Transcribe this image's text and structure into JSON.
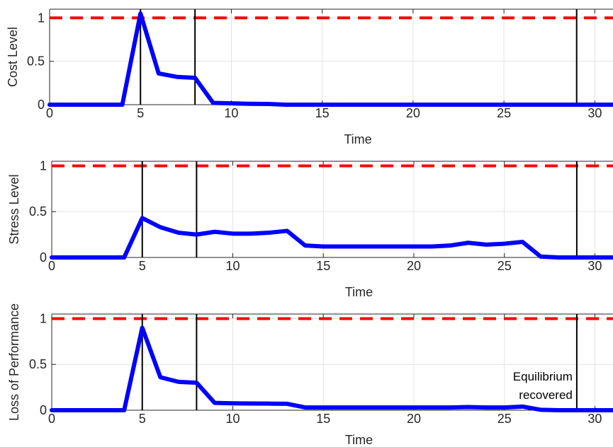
{
  "chart_data": [
    {
      "type": "line",
      "title": "",
      "xlabel": "Time",
      "ylabel": "Cost Level",
      "xlim": [
        0,
        31
      ],
      "ylim": [
        0,
        1.1
      ],
      "xticks": [
        "0",
        "5",
        "10",
        "15",
        "20",
        "25",
        "30"
      ],
      "yticks": [
        "0",
        "0.5",
        "1"
      ],
      "grid": true,
      "threshold": 1,
      "vlines": [
        5,
        8,
        29
      ],
      "series": [
        {
          "color": "#0000ff",
          "x": [
            0,
            1,
            2,
            3,
            4,
            5,
            6,
            7,
            8,
            9,
            10,
            11,
            12,
            13,
            14,
            15,
            16,
            17,
            18,
            19,
            20,
            21,
            22,
            23,
            24,
            25,
            26,
            27,
            28,
            29,
            30,
            31
          ],
          "y": [
            0,
            0,
            0,
            0,
            0,
            1.05,
            0.36,
            0.32,
            0.31,
            0.02,
            0.015,
            0.01,
            0.008,
            0,
            0,
            0,
            0,
            0,
            0,
            0,
            0,
            0,
            0,
            0,
            0,
            0,
            0,
            0,
            0,
            0,
            0,
            0
          ]
        }
      ]
    },
    {
      "type": "line",
      "title": "",
      "xlabel": "Time",
      "ylabel": "Stress Level",
      "xlim": [
        0,
        31
      ],
      "ylim": [
        0,
        1.05
      ],
      "xticks": [
        "0",
        "5",
        "10",
        "15",
        "20",
        "25",
        "30"
      ],
      "yticks": [
        "0",
        "0.5",
        "1"
      ],
      "grid": true,
      "threshold": 1,
      "vlines": [
        5,
        8,
        29
      ],
      "series": [
        {
          "color": "#0000ff",
          "x": [
            0,
            1,
            2,
            3,
            4,
            5,
            6,
            7,
            8,
            9,
            10,
            11,
            12,
            13,
            14,
            15,
            16,
            17,
            18,
            19,
            20,
            21,
            22,
            23,
            24,
            25,
            26,
            27,
            28,
            29,
            30,
            31
          ],
          "y": [
            0,
            0,
            0,
            0,
            0,
            0.43,
            0.33,
            0.27,
            0.25,
            0.28,
            0.26,
            0.26,
            0.27,
            0.29,
            0.13,
            0.12,
            0.12,
            0.12,
            0.12,
            0.12,
            0.12,
            0.12,
            0.13,
            0.16,
            0.14,
            0.15,
            0.17,
            0.01,
            0,
            0,
            0,
            0
          ]
        }
      ]
    },
    {
      "type": "line",
      "title": "",
      "xlabel": "Time",
      "ylabel": "Loss of Performance",
      "xlim": [
        0,
        31
      ],
      "ylim": [
        0,
        1.05
      ],
      "xticks": [
        "0",
        "5",
        "10",
        "15",
        "20",
        "25",
        "30"
      ],
      "yticks": [
        "0",
        "0.5",
        "1"
      ],
      "grid": true,
      "threshold": 1,
      "vlines": [
        5,
        8,
        29
      ],
      "annotations": [
        "Equilibrium",
        "recovered"
      ],
      "series": [
        {
          "color": "#0000ff",
          "x": [
            0,
            1,
            2,
            3,
            4,
            5,
            6,
            7,
            8,
            9,
            10,
            11,
            12,
            13,
            14,
            15,
            16,
            17,
            18,
            19,
            20,
            21,
            22,
            23,
            24,
            25,
            26,
            27,
            28,
            29,
            30,
            31
          ],
          "y": [
            0,
            0,
            0,
            0,
            0,
            0.9,
            0.36,
            0.31,
            0.3,
            0.08,
            0.075,
            0.073,
            0.072,
            0.07,
            0.03,
            0.03,
            0.03,
            0.03,
            0.03,
            0.03,
            0.03,
            0.03,
            0.03,
            0.035,
            0.03,
            0.03,
            0.04,
            0.005,
            0,
            0,
            0,
            0
          ]
        }
      ]
    }
  ],
  "colors": {
    "series": "#0000ff",
    "threshold": "#ff0000",
    "event_lines": "#000000",
    "grid": "#e3e3e3",
    "axis": "#262626"
  }
}
